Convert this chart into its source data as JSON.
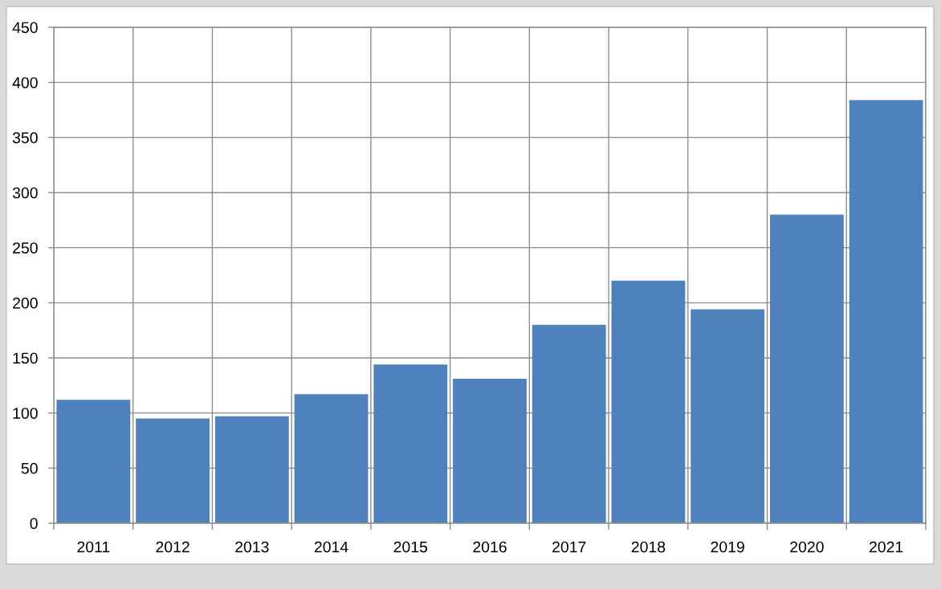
{
  "chart_data": {
    "type": "bar",
    "categories": [
      "2011",
      "2012",
      "2013",
      "2014",
      "2015",
      "2016",
      "2017",
      "2018",
      "2019",
      "2020",
      "2021"
    ],
    "values": [
      112,
      95,
      97,
      117,
      144,
      131,
      180,
      220,
      194,
      280,
      384
    ],
    "color": "#4f81bd",
    "ylim": [
      0,
      450
    ],
    "yticks": [
      0,
      50,
      100,
      150,
      200,
      250,
      300,
      350,
      400,
      450
    ],
    "grid": true
  }
}
